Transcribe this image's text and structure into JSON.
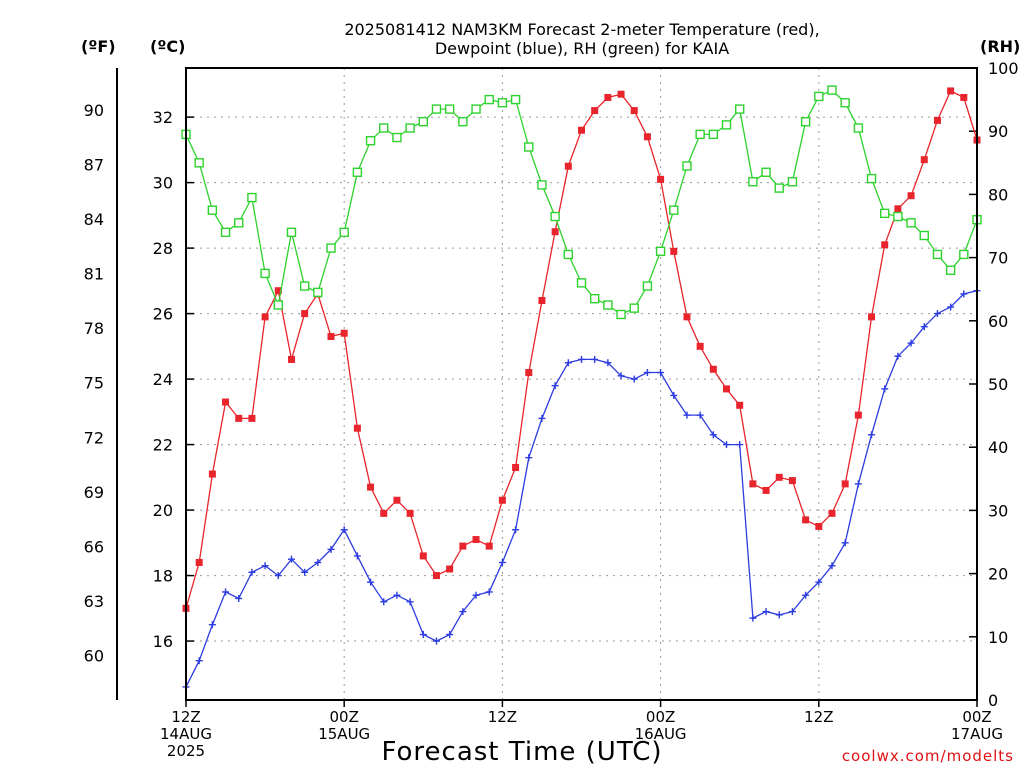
{
  "chart_data": {
    "type": "line",
    "title_lines": [
      "2025081412 NAM3KM Forecast 2-meter Temperature (red),",
      "Dewpoint (blue), RH (green) for KAIA"
    ],
    "xlabel": "Forecast Time (UTC)",
    "credit": "coolwx.com/modelts",
    "unit_labels": {
      "fahrenheit": "(ºF)",
      "celsius": "(ºC)",
      "rh": "(RH)"
    },
    "x_hours_range": [
      0,
      60
    ],
    "x_ticks": [
      {
        "hour": 0,
        "lines": [
          "12Z",
          "14AUG",
          "2025"
        ]
      },
      {
        "hour": 12,
        "lines": [
          "00Z",
          "15AUG"
        ]
      },
      {
        "hour": 24,
        "lines": [
          "12Z"
        ]
      },
      {
        "hour": 36,
        "lines": [
          "00Z",
          "16AUG"
        ]
      },
      {
        "hour": 48,
        "lines": [
          "12Z"
        ]
      },
      {
        "hour": 60,
        "lines": [
          "00Z",
          "17AUG"
        ]
      }
    ],
    "celsius_range": [
      14.2,
      33.5
    ],
    "celsius_ticks": [
      "16",
      "18",
      "20",
      "22",
      "24",
      "26",
      "28",
      "30",
      "32"
    ],
    "fahrenheit_ticks": [
      "60",
      "63",
      "66",
      "69",
      "72",
      "75",
      "78",
      "81",
      "84",
      "87",
      "90"
    ],
    "rh_range": [
      0,
      100
    ],
    "rh_ticks": [
      "0",
      "10",
      "20",
      "30",
      "40",
      "50",
      "60",
      "70",
      "80",
      "90",
      "100"
    ],
    "grid": true,
    "series": [
      {
        "color": "#e8242c",
        "axis": "celsius",
        "marker": "filled-square",
        "values": [
          17.0,
          18.4,
          21.1,
          23.3,
          22.8,
          22.8,
          25.9,
          26.7,
          24.6,
          26.0,
          26.6,
          25.3,
          25.4,
          22.5,
          20.7,
          19.9,
          20.3,
          19.9,
          18.6,
          18.0,
          18.2,
          18.9,
          19.1,
          18.9,
          20.3,
          21.3,
          24.2,
          26.4,
          28.5,
          30.5,
          31.6,
          32.2,
          32.6,
          32.7,
          32.2,
          31.4,
          30.1,
          27.9,
          25.9,
          25.0,
          24.3,
          23.7,
          23.2,
          20.8,
          20.6,
          21.0,
          20.9,
          19.7,
          19.5,
          19.9,
          20.8,
          22.9,
          25.9,
          28.1,
          29.2,
          29.6,
          30.7,
          31.9,
          32.8,
          32.6,
          31.3
        ]
      },
      {
        "color": "#2c3ce0",
        "axis": "celsius",
        "marker": "plus",
        "values": [
          14.6,
          15.4,
          16.5,
          17.5,
          17.3,
          18.1,
          18.3,
          18.0,
          18.5,
          18.1,
          18.4,
          18.8,
          19.4,
          18.6,
          17.8,
          17.2,
          17.4,
          17.2,
          16.2,
          16.0,
          16.2,
          16.9,
          17.4,
          17.5,
          18.4,
          19.4,
          21.6,
          22.8,
          23.8,
          24.5,
          24.6,
          24.6,
          24.5,
          24.1,
          24.0,
          24.2,
          24.2,
          23.5,
          22.9,
          22.9,
          22.3,
          22.0,
          22.0,
          16.7,
          16.9,
          16.8,
          16.9,
          17.4,
          17.8,
          18.3,
          19.0,
          20.8,
          22.3,
          23.7,
          24.7,
          25.1,
          25.6,
          26.0,
          26.2,
          26.6,
          26.7
        ]
      },
      {
        "color": "#2ed22e",
        "axis": "rh",
        "marker": "open-square",
        "values": [
          89.5,
          85.0,
          77.5,
          74.0,
          75.5,
          79.5,
          67.5,
          62.5,
          74.0,
          65.5,
          64.5,
          71.5,
          74.0,
          83.5,
          88.5,
          90.5,
          89.0,
          90.5,
          91.5,
          93.5,
          93.5,
          91.5,
          93.5,
          95.0,
          94.5,
          95.0,
          87.5,
          81.5,
          76.5,
          70.5,
          66.0,
          63.5,
          62.5,
          61.0,
          62.0,
          65.5,
          71.0,
          77.5,
          84.5,
          89.5,
          89.5,
          91.0,
          93.5,
          82.0,
          83.5,
          81.0,
          82.0,
          91.5,
          95.5,
          96.5,
          94.5,
          90.5,
          82.5,
          77.0,
          76.5,
          75.5,
          73.5,
          70.5,
          68.0,
          70.5,
          76.0
        ]
      }
    ]
  }
}
